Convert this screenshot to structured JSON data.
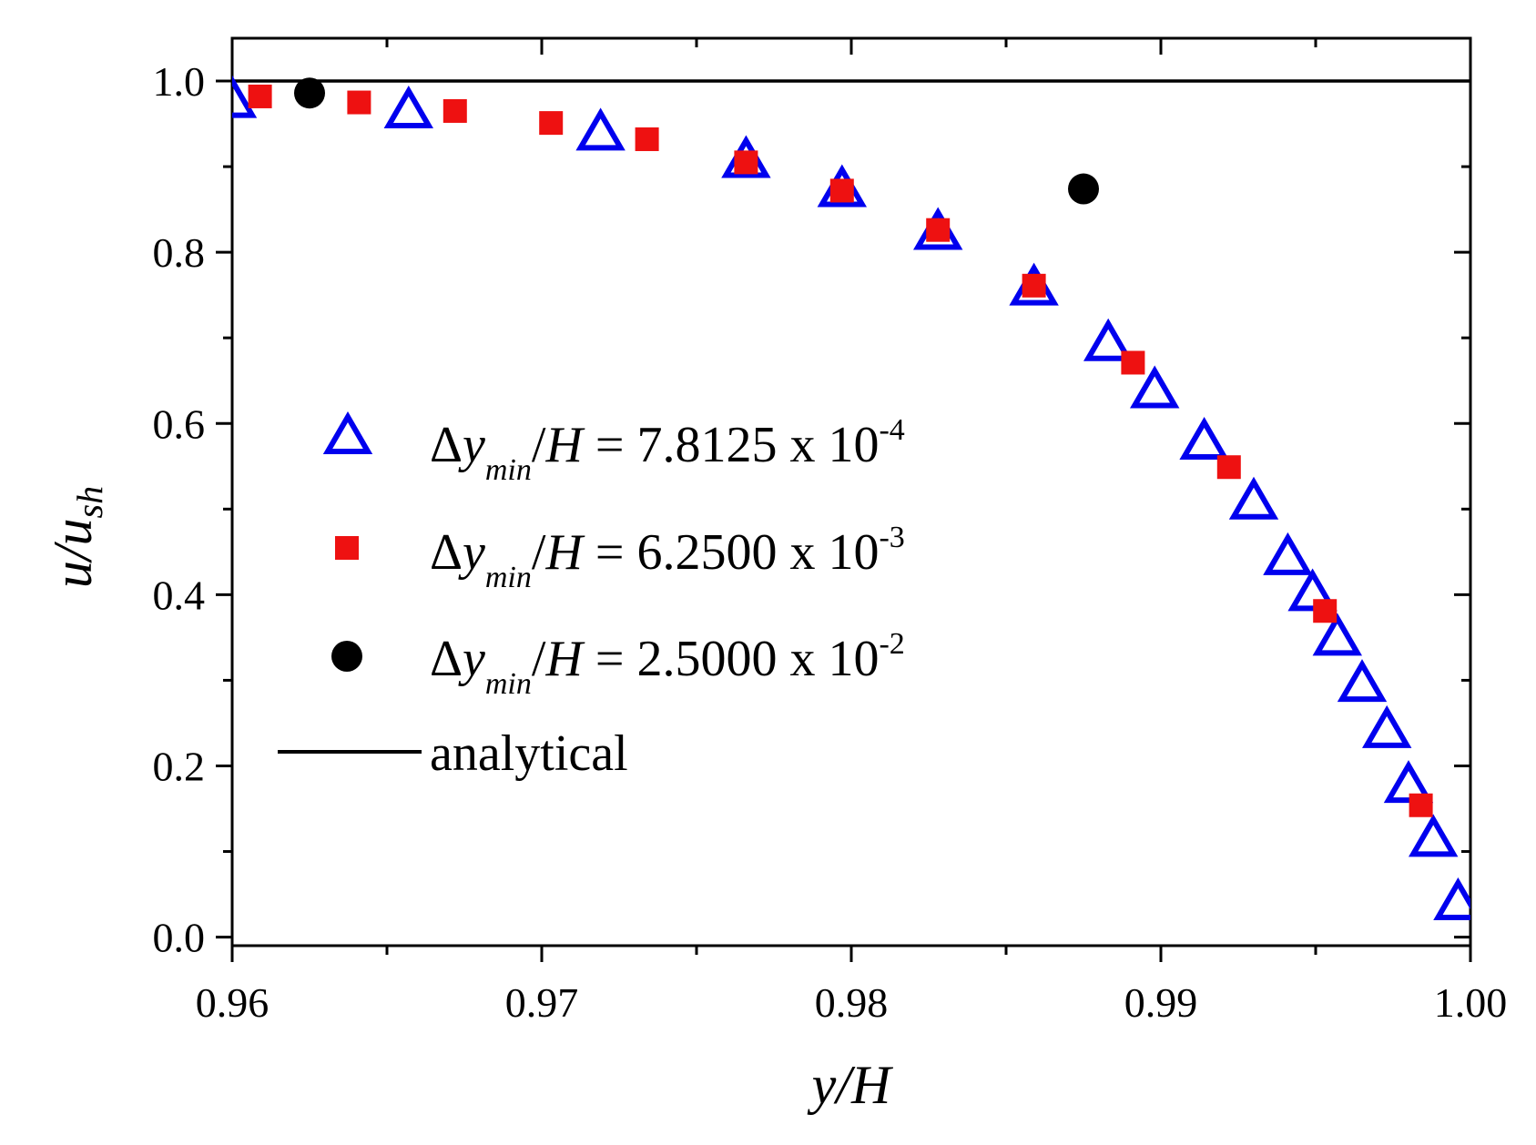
{
  "chart_data": {
    "type": "scatter",
    "title": "",
    "xlabel": "y/H",
    "ylabel": "u/u",
    "ylabel_sub": "sh",
    "xlim": [
      0.96,
      1.0
    ],
    "ylim": [
      -0.01,
      1.05
    ],
    "xticks": [
      0.96,
      0.97,
      0.98,
      0.99,
      1.0
    ],
    "xtick_labels": [
      "0.96",
      "0.97",
      "0.98",
      "0.99",
      "1.00"
    ],
    "yticks": [
      0.0,
      0.2,
      0.4,
      0.6,
      0.8,
      1.0
    ],
    "ytick_labels": [
      "0.0",
      "0.2",
      "0.4",
      "0.6",
      "0.8",
      "1.0"
    ],
    "legend_position": "center-left",
    "series": [
      {
        "name": "Δy_min/H = 7.8125 x 10^-4",
        "label_delta": "Δ",
        "label_y": "y",
        "label_sub": "min",
        "label_slash": "/",
        "label_H": "H",
        "label_eq": " = 7.8125 x 10",
        "label_exp": "-4",
        "marker": "triangle-open",
        "color": "#0000ee",
        "x": [
          0.96,
          0.9657,
          0.9719,
          0.9766,
          0.9797,
          0.9828,
          0.9859,
          0.9883,
          0.9898,
          0.9914,
          0.993,
          0.9941,
          0.9949,
          0.9957,
          0.9965,
          0.9973,
          0.998,
          0.9988,
          0.9996
        ],
        "y": [
          0.977,
          0.965,
          0.939,
          0.907,
          0.873,
          0.823,
          0.758,
          0.693,
          0.638,
          0.578,
          0.508,
          0.443,
          0.401,
          0.349,
          0.295,
          0.241,
          0.177,
          0.114,
          0.04
        ]
      },
      {
        "name": "Δy_min/H = 6.2500 x 10^-3",
        "label_delta": "Δ",
        "label_y": "y",
        "label_sub": "min",
        "label_slash": "/",
        "label_H": "H",
        "label_eq": " = 6.2500 x 10",
        "label_exp": "-3",
        "marker": "square",
        "color": "#ee1111",
        "x": [
          0.9609,
          0.9641,
          0.9672,
          0.9703,
          0.9734,
          0.9766,
          0.9797,
          0.9828,
          0.9859,
          0.9891,
          0.9922,
          0.9953,
          0.9984
        ],
        "y": [
          0.982,
          0.975,
          0.965,
          0.951,
          0.932,
          0.905,
          0.872,
          0.826,
          0.761,
          0.671,
          0.549,
          0.381,
          0.154
        ]
      },
      {
        "name": "Δy_min/H = 2.5000 x 10^-2",
        "label_delta": "Δ",
        "label_y": "y",
        "label_sub": "min",
        "label_slash": "/",
        "label_H": "H",
        "label_eq": " = 2.5000 x 10",
        "label_exp": "-2",
        "marker": "circle",
        "color": "#000000",
        "x": [
          0.9625,
          0.9875
        ],
        "y": [
          0.986,
          0.874
        ]
      },
      {
        "name": "analytical",
        "label": "analytical",
        "marker": "line",
        "color": "#000000"
      }
    ]
  }
}
